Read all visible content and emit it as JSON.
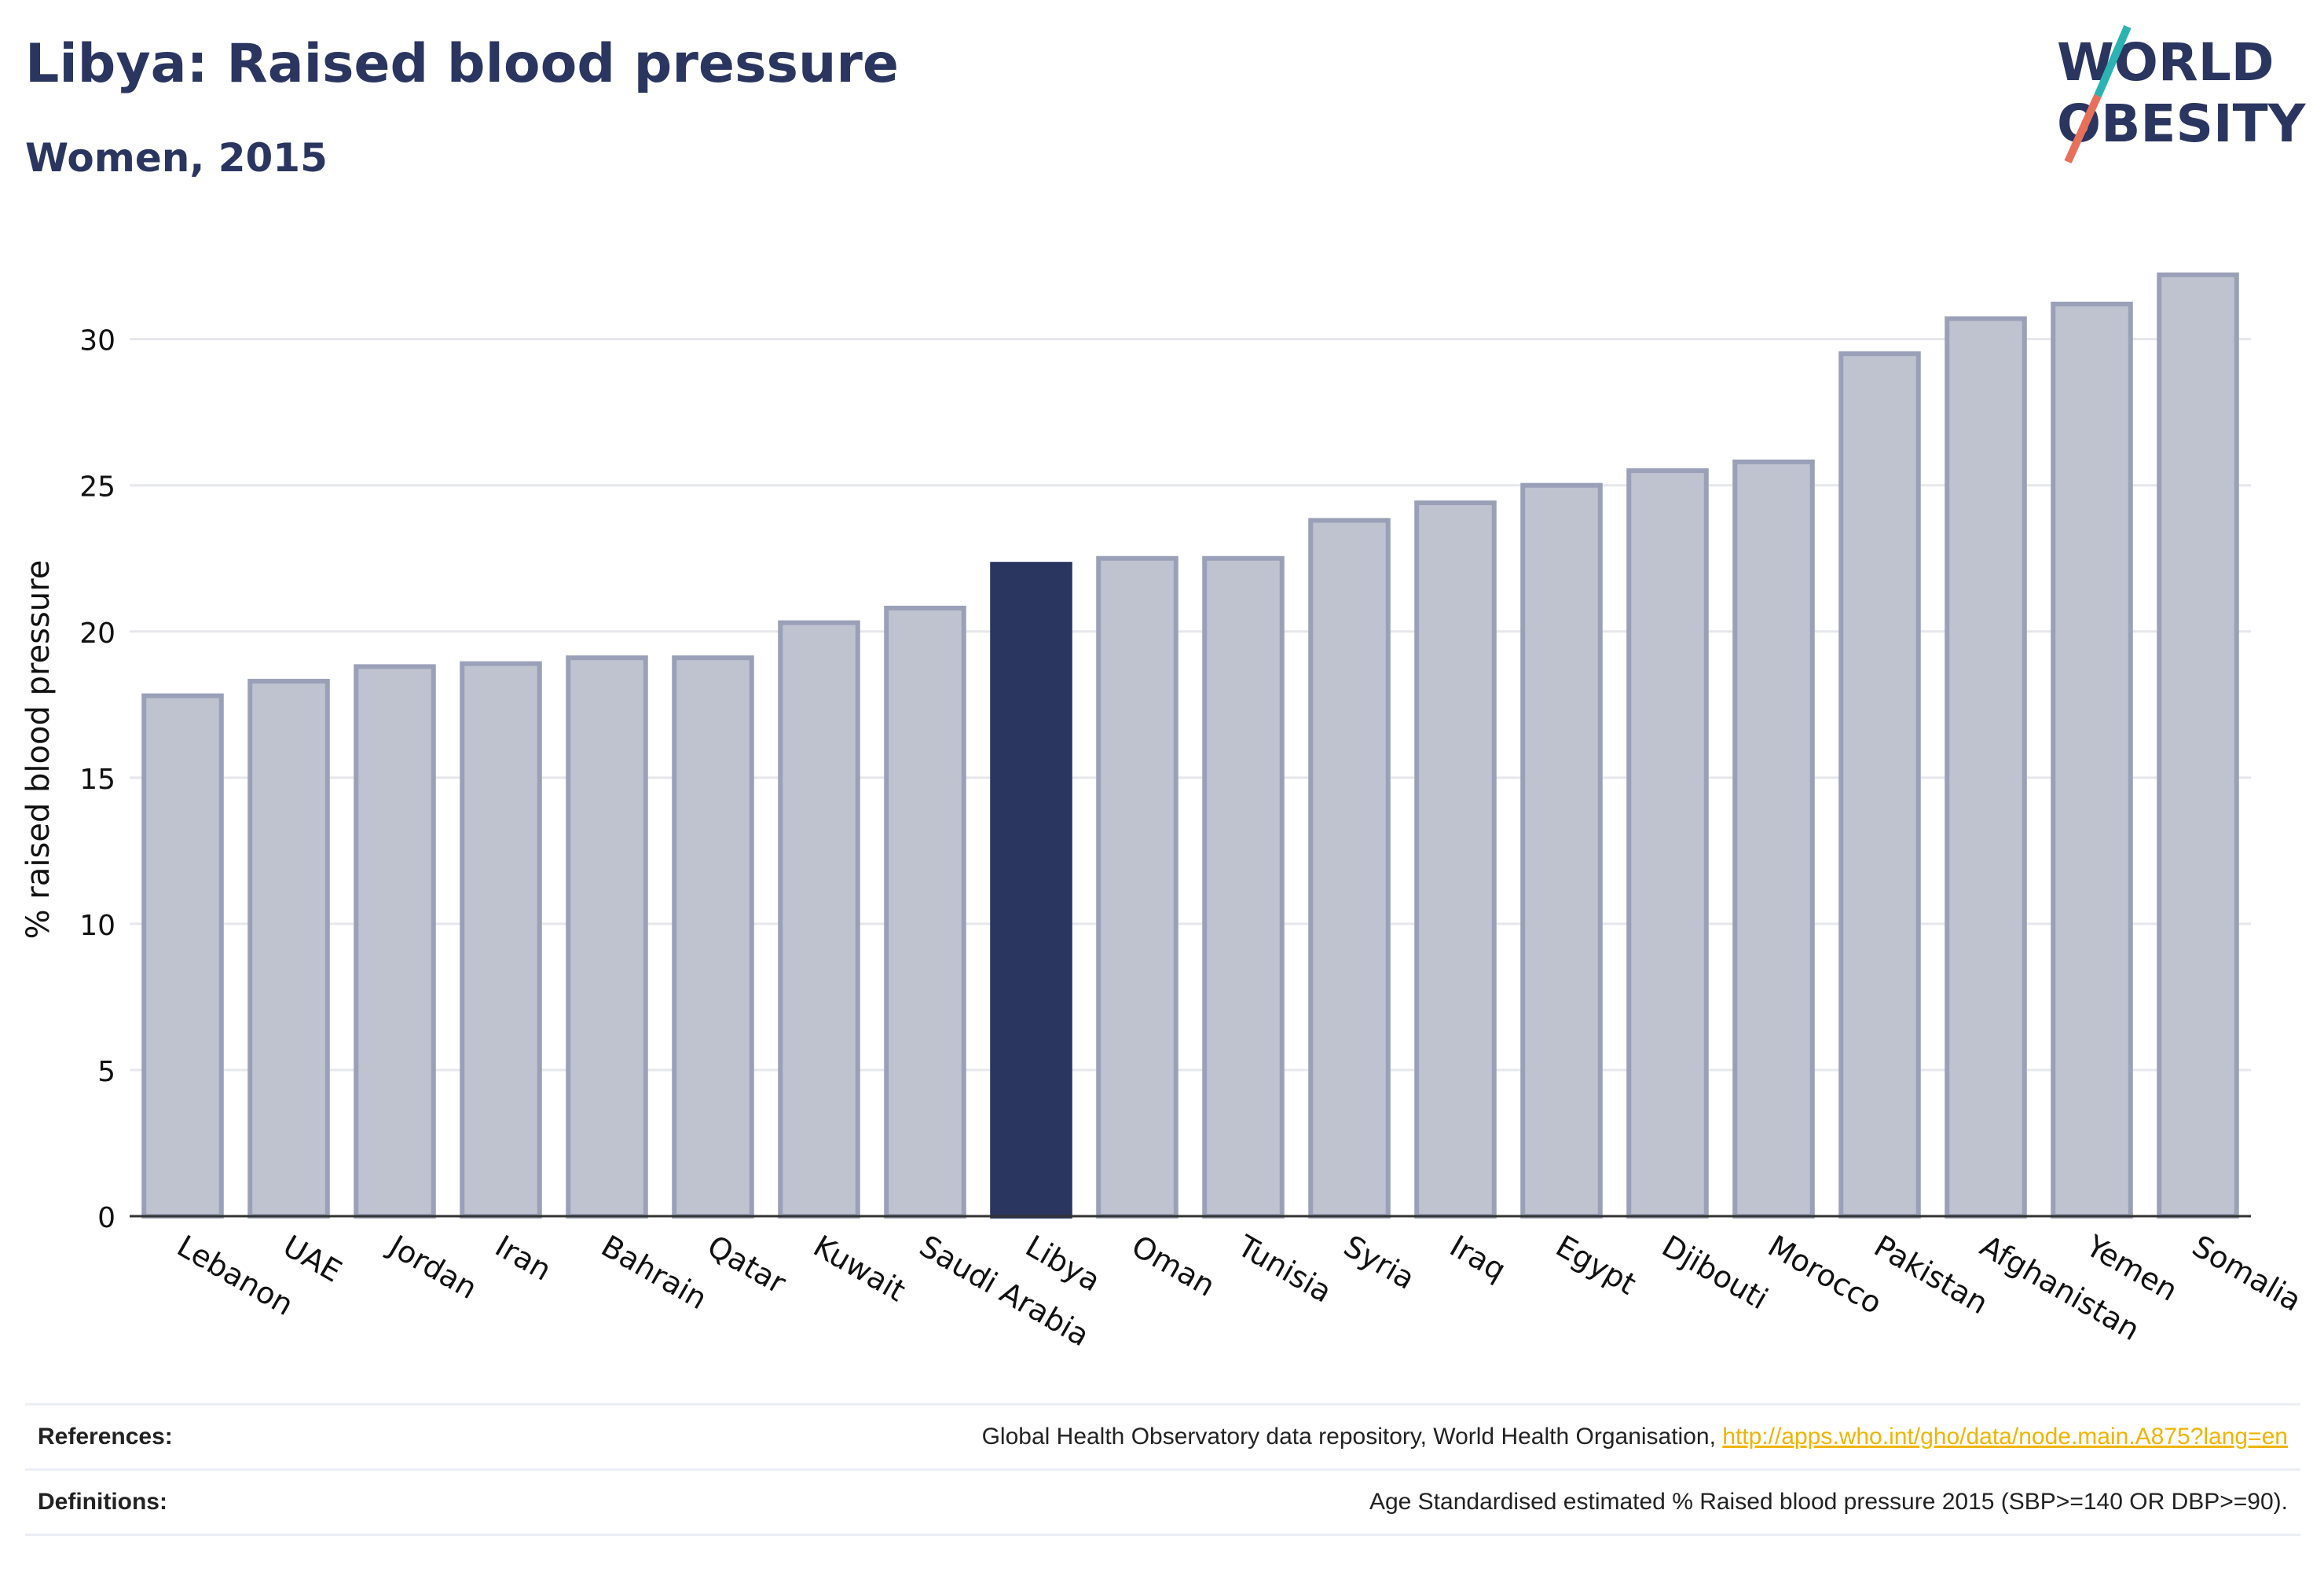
{
  "header": {
    "title": "Libya: Raised blood pressure",
    "subtitle": "Women, 2015"
  },
  "logo": {
    "line1": "WORLD",
    "line2": "OBESITY",
    "colors": {
      "text": "#2a3560",
      "slash_top": "#2bb3b1",
      "slash_bottom": "#e8705a"
    }
  },
  "footer": {
    "references_label": "References:",
    "references_text": "Global Health Observatory data repository, World Health Organisation, ",
    "references_link": "http://apps.who.int/gho/data/node.main.A875?lang=en",
    "definitions_label": "Definitions:",
    "definitions_text": "Age Standardised estimated % Raised blood pressure 2015 (SBP>=140 OR DBP>=90)."
  },
  "chart_data": {
    "type": "bar",
    "title": "Libya: Raised blood pressure",
    "subtitle": "Women, 2015",
    "xlabel": "",
    "ylabel": "% raised blood pressure",
    "ylim": [
      0,
      33
    ],
    "yticks": [
      0,
      5,
      10,
      15,
      20,
      25,
      30
    ],
    "grid": true,
    "highlight": "Libya",
    "colors": {
      "bar": "#bfc3d0",
      "bar_edge": "#9aa0b8",
      "highlight": "#2a3560"
    },
    "categories": [
      "Lebanon",
      "UAE",
      "Jordan",
      "Iran",
      "Bahrain",
      "Qatar",
      "Kuwait",
      "Saudi Arabia",
      "Libya",
      "Oman",
      "Tunisia",
      "Syria",
      "Iraq",
      "Egypt",
      "Djibouti",
      "Morocco",
      "Pakistan",
      "Afghanistan",
      "Yemen",
      "Somalia"
    ],
    "values": [
      17.8,
      18.3,
      18.8,
      18.9,
      19.1,
      19.1,
      20.3,
      20.8,
      22.3,
      22.5,
      22.5,
      23.8,
      24.4,
      25.0,
      25.5,
      25.8,
      29.5,
      30.7,
      31.2,
      32.2
    ]
  }
}
